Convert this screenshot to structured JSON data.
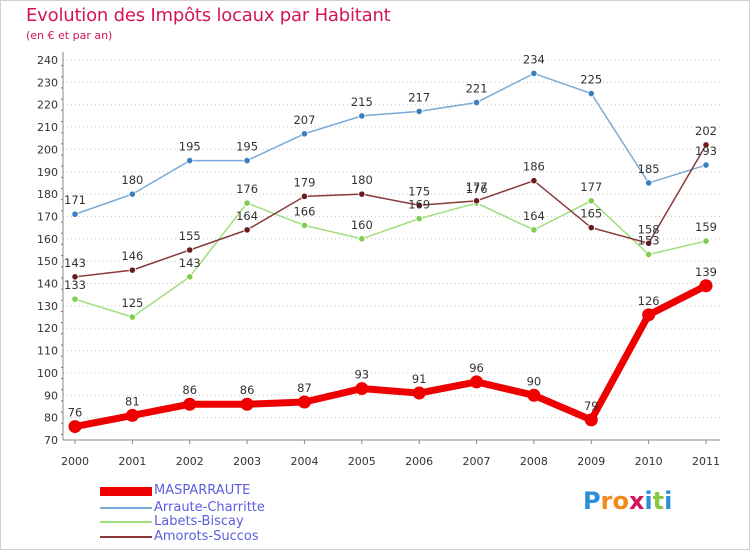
{
  "header": {
    "title": "Evolution des Impôts locaux par Habitant",
    "subtitle": "(en € et par an)"
  },
  "chart_data": {
    "type": "line",
    "title": "Evolution des Impôts locaux par Habitant",
    "subtitle": "(en € et par an)",
    "xlabel": "",
    "ylabel": "",
    "ylim": [
      70,
      240
    ],
    "yticks": [
      70,
      80,
      90,
      100,
      110,
      120,
      130,
      140,
      150,
      160,
      170,
      180,
      190,
      200,
      210,
      220,
      230,
      240
    ],
    "grid": "dotted horizontal",
    "categories": [
      "2000",
      "2001",
      "2002",
      "2003",
      "2004",
      "2005",
      "2006",
      "2007",
      "2008",
      "2009",
      "2010",
      "2011"
    ],
    "series": [
      {
        "name": "MASPARRAUTE",
        "color": "#ee0000",
        "values": [
          76,
          81,
          86,
          86,
          87,
          93,
          91,
          96,
          90,
          79,
          126,
          139
        ]
      },
      {
        "name": "Arraute-Charritte",
        "color": "#7aaad8",
        "marker": "#3a80c0",
        "values": [
          171,
          180,
          195,
          195,
          207,
          215,
          217,
          221,
          234,
          225,
          185,
          193
        ]
      },
      {
        "name": "Labets-Biscay",
        "color": "#9ede7a",
        "marker": "#80cc50",
        "values": [
          133,
          125,
          143,
          176,
          166,
          160,
          169,
          176,
          164,
          177,
          153,
          159
        ]
      },
      {
        "name": "Amorots-Succos",
        "color": "#8a3a3a",
        "marker": "#6a1a1a",
        "values": [
          143,
          146,
          155,
          164,
          179,
          180,
          175,
          177,
          186,
          165,
          158,
          202
        ]
      }
    ],
    "legend_position": "bottom-left"
  },
  "logo": {
    "letters": [
      "P",
      "r",
      "o",
      "x",
      "i",
      "t",
      "i"
    ],
    "colors": [
      "#2a8fd8",
      "#f08a1a",
      "#f08a1a",
      "#d4145a",
      "#2a8fd8",
      "#8cc63f",
      "#2a8fd8"
    ]
  }
}
